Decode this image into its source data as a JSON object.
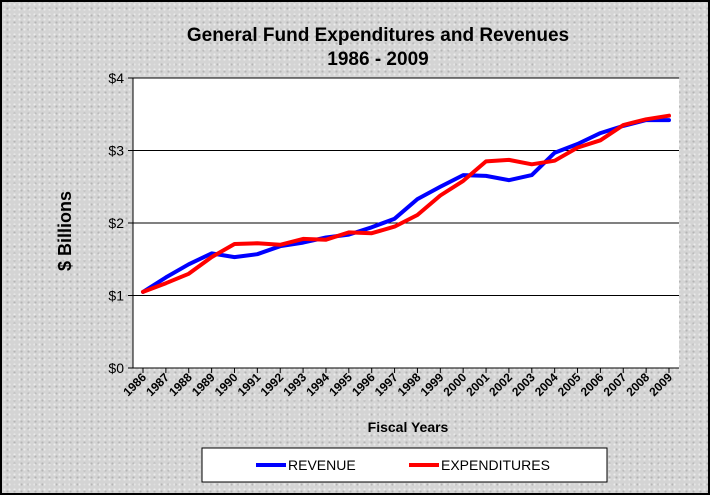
{
  "chart_data": {
    "type": "line",
    "title": "General Fund Expenditures and Revenues",
    "subtitle": "1986 - 2009",
    "xlabel": "Fiscal Years",
    "ylabel": "$ Billions",
    "categories": [
      "1986",
      "1987",
      "1988",
      "1989",
      "1990",
      "1991",
      "1992",
      "1993",
      "1994",
      "1995",
      "1996",
      "1997",
      "1998",
      "1999",
      "2000",
      "2001",
      "2002",
      "2003",
      "2004",
      "2005",
      "2006",
      "2007",
      "2008",
      "2009"
    ],
    "ylim": [
      0,
      4
    ],
    "yticks": [
      0,
      1,
      2,
      3,
      4
    ],
    "ytick_labels": [
      "$0",
      "$1",
      "$2",
      "$3",
      "$4"
    ],
    "grid": true,
    "legend_position": "bottom",
    "series": [
      {
        "name": "REVENUE",
        "color": "#0000ff",
        "values": [
          1.05,
          1.25,
          1.43,
          1.58,
          1.53,
          1.57,
          1.68,
          1.73,
          1.8,
          1.84,
          1.94,
          2.06,
          2.33,
          2.5,
          2.66,
          2.65,
          2.59,
          2.66,
          2.97,
          3.09,
          3.24,
          3.34,
          3.42,
          3.42
        ]
      },
      {
        "name": "EXPENDITURES",
        "color": "#ff0000",
        "values": [
          1.05,
          1.17,
          1.3,
          1.53,
          1.71,
          1.72,
          1.7,
          1.78,
          1.77,
          1.87,
          1.86,
          1.95,
          2.11,
          2.38,
          2.58,
          2.85,
          2.87,
          2.81,
          2.86,
          3.04,
          3.14,
          3.35,
          3.43,
          3.48
        ]
      }
    ]
  }
}
